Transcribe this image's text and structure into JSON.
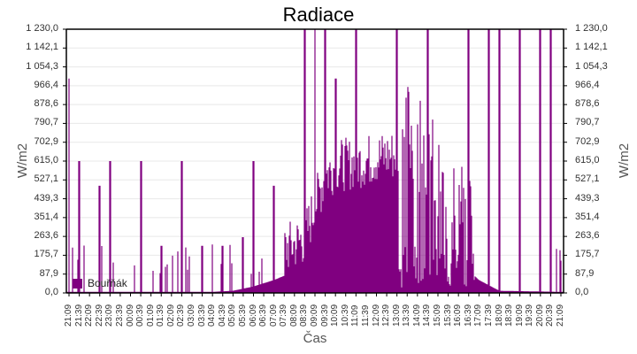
{
  "chart_data": {
    "type": "bar",
    "title": "Radiace",
    "xlabel": "Čas",
    "ylabel": "W/m2",
    "ylim": [
      0,
      1230.0
    ],
    "y_ticks": [
      "0,0",
      "87,9",
      "175,7",
      "263,6",
      "351,4",
      "439,3",
      "527,1",
      "615,0",
      "702,9",
      "790,7",
      "878,6",
      "966,4",
      "1 054,3",
      "1 142,1",
      "1 230,0"
    ],
    "x_ticks": [
      "21:09",
      "21:39",
      "22:09",
      "22:39",
      "23:09",
      "23:39",
      "00:09",
      "00:39",
      "01:09",
      "01:39",
      "02:09",
      "02:39",
      "03:09",
      "03:39",
      "04:09",
      "04:39",
      "05:09",
      "05:39",
      "06:09",
      "06:39",
      "07:09",
      "07:39",
      "08:09",
      "08:39",
      "09:09",
      "09:39",
      "10:09",
      "10:39",
      "11:09",
      "11:39",
      "12:09",
      "12:39",
      "13:09",
      "13:39",
      "14:09",
      "14:39",
      "15:09",
      "15:39",
      "16:09",
      "16:39",
      "17:09",
      "17:39",
      "18:09",
      "18:39",
      "19:09",
      "19:39",
      "20:09",
      "20:39",
      "21:09"
    ],
    "grid": true,
    "legend_position": "inside-bottom-left",
    "series": [
      {
        "name": "Bouřňák",
        "color": "#800080",
        "baseline_envelope": [
          {
            "time": "21:09",
            "value": 5
          },
          {
            "time": "04:09",
            "value": 5
          },
          {
            "time": "05:09",
            "value": 10
          },
          {
            "time": "06:09",
            "value": 30
          },
          {
            "time": "07:09",
            "value": 60
          },
          {
            "time": "08:09",
            "value": 100
          },
          {
            "time": "08:39",
            "value": 130
          },
          {
            "time": "09:09",
            "value": 280
          },
          {
            "time": "09:39",
            "value": 420
          },
          {
            "time": "10:09",
            "value": 470
          },
          {
            "time": "11:09",
            "value": 480
          },
          {
            "time": "12:09",
            "value": 505
          },
          {
            "time": "13:09",
            "value": 520
          },
          {
            "time": "13:39",
            "value": 510
          },
          {
            "time": "14:09",
            "value": 470
          },
          {
            "time": "14:39",
            "value": 440
          },
          {
            "time": "15:09",
            "value": 200
          },
          {
            "time": "16:09",
            "value": 150
          },
          {
            "time": "17:09",
            "value": 60
          },
          {
            "time": "18:09",
            "value": 10
          },
          {
            "time": "21:09",
            "value": 5
          }
        ],
        "peaks": [
          {
            "time": "21:39",
            "value": 615
          },
          {
            "time": "22:39",
            "value": 500
          },
          {
            "time": "23:09",
            "value": 615
          },
          {
            "time": "00:39",
            "value": 615
          },
          {
            "time": "01:39",
            "value": 220
          },
          {
            "time": "02:39",
            "value": 615
          },
          {
            "time": "03:39",
            "value": 220
          },
          {
            "time": "04:39",
            "value": 220
          },
          {
            "time": "05:39",
            "value": 260
          },
          {
            "time": "06:09",
            "value": 615
          },
          {
            "time": "07:09",
            "value": 500
          },
          {
            "time": "08:39",
            "value": 1230
          },
          {
            "time": "09:09",
            "value": 1230
          },
          {
            "time": "09:39",
            "value": 1230
          },
          {
            "time": "10:09",
            "value": 1000
          },
          {
            "time": "11:09",
            "value": 1230
          },
          {
            "time": "13:09",
            "value": 1230
          },
          {
            "time": "14:39",
            "value": 1230
          },
          {
            "time": "16:39",
            "value": 1230
          },
          {
            "time": "17:39",
            "value": 1230
          },
          {
            "time": "18:09",
            "value": 1230
          },
          {
            "time": "19:09",
            "value": 1230
          },
          {
            "time": "20:09",
            "value": 1230
          },
          {
            "time": "20:39",
            "value": 1230
          },
          {
            "time": "21:09",
            "value": 1000
          }
        ]
      }
    ]
  }
}
